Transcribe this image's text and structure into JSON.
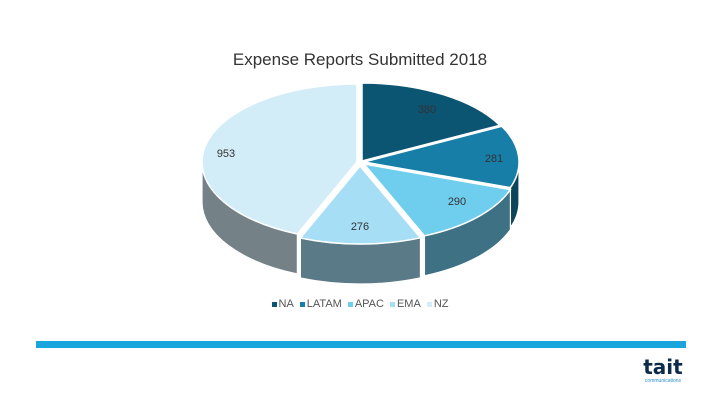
{
  "chart_data": {
    "type": "pie",
    "title": "Expense Reports Submitted 2018",
    "categories": [
      "NA",
      "LATAM",
      "APAC",
      "EMA",
      "NZ"
    ],
    "values": [
      380,
      281,
      290,
      276,
      953
    ],
    "legend_position": "bottom",
    "style": "3d-pie"
  },
  "colors": {
    "NA": "#0b5472",
    "LATAM": "#177ea7",
    "APAC": "#6fcdee",
    "EMA": "#a5def5",
    "NZ": "#d2edf8",
    "footer_bar": "#1aa6dc"
  },
  "logo": {
    "word": "tait",
    "sub": "communications"
  }
}
